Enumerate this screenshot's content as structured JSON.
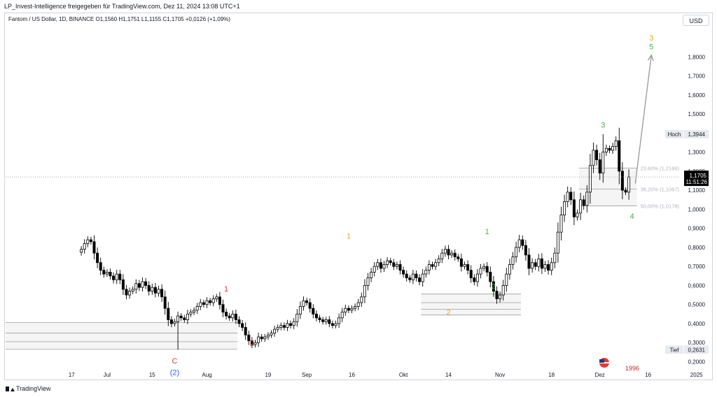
{
  "header": {
    "shared_by": "LP_Invest-Intelligence freigegeben für TradingView.com, Dez 11, 2024 13:08 UTC+1",
    "legend": "Fantom / US Dollar, 1D, BINANCE  O1,1560  H1,1751  L1,1155  C1,1705  +0,0126 (+1,09%)",
    "currency_button": "USD"
  },
  "footer": {
    "brand": "TradingView"
  },
  "colors": {
    "up": "#ffffff",
    "down": "#000000",
    "wave_green": "#4caf50",
    "wave_red": "#e53935",
    "wave_orange": "#f5a623",
    "wave_blue": "#2962ff",
    "arrow": "#9e9e9e"
  },
  "chart_data": {
    "type": "candlestick",
    "title": "Fantom / US Dollar, 1D, BINANCE",
    "ylim": [
      0.165,
      1.9666
    ],
    "y_ticks": [
      "0,2000",
      "0,3000",
      "0,4000",
      "0,5000",
      "0,6000",
      "0,7000",
      "0,8000",
      "0,9000",
      "1,0000",
      "1,1000",
      "1,2000",
      "1,3000",
      "1,4000",
      "1,5000",
      "1,6000",
      "1,7000",
      "1,8000"
    ],
    "x_ticks": [
      "17",
      "Jul",
      "15",
      "Aug",
      "19",
      "Sep",
      "16",
      "Okt",
      "14",
      "Nov",
      "18",
      "Dez",
      "16",
      "2025"
    ],
    "x_tick_pos": [
      20,
      31,
      45,
      62,
      81,
      93,
      107,
      123,
      137,
      153,
      169,
      184,
      199,
      214
    ],
    "last_bar_index": 193,
    "closes": [
      0.79,
      0.82,
      0.84,
      0.83,
      0.77,
      0.72,
      0.68,
      0.66,
      0.67,
      0.65,
      0.63,
      0.66,
      0.63,
      0.58,
      0.55,
      0.57,
      0.58,
      0.61,
      0.59,
      0.62,
      0.6,
      0.57,
      0.59,
      0.56,
      0.58,
      0.54,
      0.48,
      0.42,
      0.4,
      0.41,
      0.44,
      0.43,
      0.42,
      0.45,
      0.46,
      0.47,
      0.49,
      0.51,
      0.5,
      0.52,
      0.51,
      0.53,
      0.54,
      0.5,
      0.46,
      0.44,
      0.43,
      0.45,
      0.42,
      0.4,
      0.38,
      0.34,
      0.31,
      0.29,
      0.3,
      0.33,
      0.32,
      0.33,
      0.34,
      0.35,
      0.37,
      0.38,
      0.39,
      0.38,
      0.4,
      0.39,
      0.41,
      0.45,
      0.49,
      0.52,
      0.51,
      0.48,
      0.45,
      0.43,
      0.42,
      0.41,
      0.42,
      0.4,
      0.39,
      0.4,
      0.43,
      0.46,
      0.48,
      0.47,
      0.48,
      0.49,
      0.51,
      0.54,
      0.6,
      0.64,
      0.67,
      0.7,
      0.72,
      0.69,
      0.71,
      0.73,
      0.72,
      0.7,
      0.71,
      0.68,
      0.66,
      0.64,
      0.63,
      0.66,
      0.64,
      0.62,
      0.66,
      0.68,
      0.71,
      0.7,
      0.72,
      0.74,
      0.77,
      0.79,
      0.76,
      0.77,
      0.75,
      0.74,
      0.7,
      0.71,
      0.68,
      0.64,
      0.62,
      0.66,
      0.69,
      0.7,
      0.67,
      0.62,
      0.57,
      0.53,
      0.55,
      0.6,
      0.66,
      0.71,
      0.75,
      0.8,
      0.84,
      0.81,
      0.76,
      0.69,
      0.72,
      0.7,
      0.74,
      0.69,
      0.71,
      0.68,
      0.72,
      0.77,
      0.88,
      0.97,
      1.04,
      1.09,
      1.05,
      0.96,
      0.98,
      1.05,
      1.02,
      1.09,
      1.23,
      1.31,
      1.26,
      1.19,
      1.3,
      1.32,
      1.31,
      1.33,
      1.36,
      1.2,
      1.1,
      1.09,
      1.17
    ],
    "high": 1.3944,
    "low": 0.2631,
    "last_price": "1,1705",
    "countdown": "11:51:26",
    "labels": {
      "high_label": "Hoch",
      "high_value": "1,3944",
      "low_label": "Tief",
      "low_value": "0,2631",
      "fib_236": "23,60% (1,2166)",
      "fib_382": "38,20% (1,1067)",
      "fib_500": "50,00% (1,0178)",
      "bottom_cut_text": "1996"
    },
    "zones": [
      {
        "x0": 0,
        "x1": 72,
        "levels": [
          0.405,
          0.35,
          0.305,
          0.265
        ]
      },
      {
        "x0": 129,
        "x1": 160,
        "levels": [
          0.555,
          0.51,
          0.475,
          0.445
        ]
      },
      {
        "x0": 178,
        "x1": 196,
        "levels": [
          1.2166,
          1.1067,
          1.0178
        ]
      }
    ],
    "waves": [
      {
        "text": "C",
        "bar": 52,
        "y": 0.205,
        "color": "wave_red"
      },
      {
        "text": "(2)",
        "bar": 52,
        "y": 0.144,
        "color": "wave_blue"
      },
      {
        "text": "1",
        "bar": 68,
        "y": 0.583,
        "color": "wave_red"
      },
      {
        "text": "2",
        "bar": 76,
        "y": 0.297,
        "color": "wave_red"
      },
      {
        "text": "1",
        "bar": 106,
        "y": 0.86,
        "color": "wave_orange"
      },
      {
        "text": "2",
        "bar": 137,
        "y": 0.46,
        "color": "wave_orange"
      },
      {
        "text": "1",
        "bar": 149,
        "y": 0.884,
        "color": "wave_green"
      },
      {
        "text": "2",
        "bar": 151,
        "y": 0.596,
        "color": "wave_green"
      },
      {
        "text": "3",
        "bar": 185,
        "y": 1.443,
        "color": "wave_green"
      },
      {
        "text": "4",
        "bar": 194,
        "y": 0.965,
        "color": "wave_green"
      },
      {
        "text": "3",
        "bar": 200,
        "y": 1.901,
        "color": "wave_orange"
      },
      {
        "text": "5",
        "bar": 200,
        "y": 1.855,
        "color": "wave_green"
      }
    ],
    "arrow": {
      "from_bar": 195,
      "from_y": 1.135,
      "to_bar": 200,
      "to_y": 1.81
    }
  }
}
